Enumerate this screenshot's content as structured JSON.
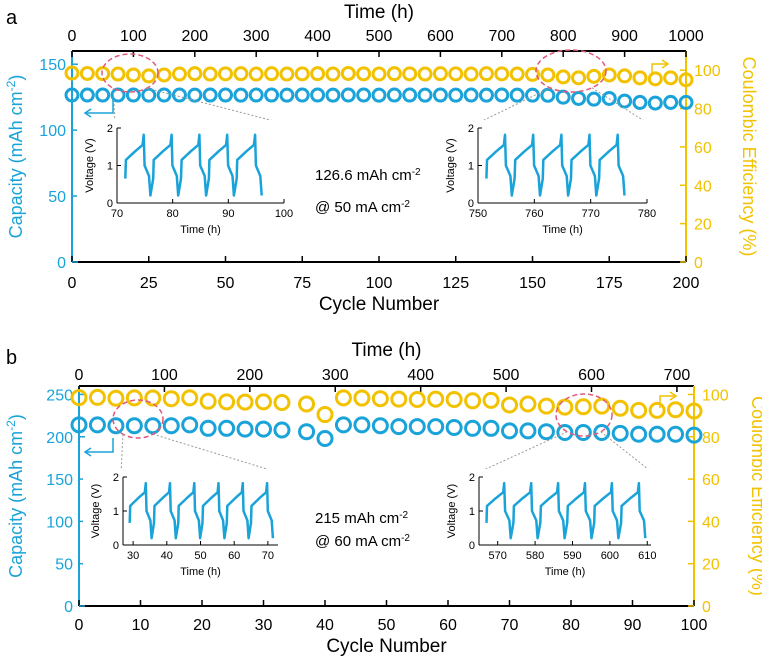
{
  "colors": {
    "capacity": "#1aa3d9",
    "efficiency": "#f2c200",
    "axis": "#000000",
    "highlight": "#e05a7a",
    "inset_line": "#1aa3d9"
  },
  "chart_data": [
    {
      "type": "scatter",
      "panel_label": "a",
      "xlabel": "Cycle Number",
      "xlim": [
        0,
        200
      ],
      "xticks": [
        0,
        25,
        50,
        75,
        100,
        125,
        150,
        175,
        200
      ],
      "top_xlabel": "Time (h)",
      "top_xlim": [
        0,
        1000
      ],
      "top_xticks": [
        0,
        100,
        200,
        300,
        400,
        500,
        600,
        700,
        800,
        900,
        1000
      ],
      "ylabel_left": "Capacity (mAh cm",
      "ylabel_left_suffix": ")",
      "ylabel_left_sup": "-2",
      "ylim_left": [
        0,
        160
      ],
      "yticks_left": [
        0,
        50,
        100,
        150
      ],
      "ylabel_right": "Coulombic Efficiency (%)",
      "ylim_right": [
        0,
        110
      ],
      "yticks_right": [
        0,
        20,
        40,
        60,
        80,
        100
      ],
      "annotation": {
        "line1": "126.6 mAh cm",
        "line1_sup": "-2",
        "line2": "@ 50 mA cm",
        "line2_sup": "-2"
      },
      "series": [
        {
          "name": "Capacity",
          "axis": "left",
          "x": [
            0,
            5,
            10,
            15,
            20,
            25,
            30,
            35,
            40,
            45,
            50,
            55,
            60,
            65,
            70,
            75,
            80,
            85,
            90,
            95,
            100,
            105,
            110,
            115,
            120,
            125,
            130,
            135,
            140,
            145,
            150,
            155,
            160,
            165,
            170,
            175,
            180,
            185,
            190,
            195,
            200
          ],
          "values": [
            126.6,
            126.6,
            126.6,
            126.6,
            126.6,
            126.5,
            126.6,
            126.6,
            126.5,
            126.6,
            126.6,
            126.5,
            126.6,
            126.6,
            126.5,
            126.6,
            126.6,
            126.5,
            126.6,
            126.6,
            126.5,
            126.6,
            126.6,
            126.5,
            126.6,
            126.5,
            126.6,
            126.5,
            126.6,
            126.5,
            126.5,
            126.4,
            125,
            124,
            123.5,
            124,
            122,
            121,
            120.5,
            121,
            121
          ]
        },
        {
          "name": "Coulombic Efficiency",
          "axis": "right",
          "x": [
            0,
            5,
            10,
            15,
            20,
            25,
            30,
            35,
            40,
            45,
            50,
            55,
            60,
            65,
            70,
            75,
            80,
            85,
            90,
            95,
            100,
            105,
            110,
            115,
            120,
            125,
            130,
            135,
            140,
            145,
            150,
            155,
            160,
            165,
            170,
            175,
            180,
            185,
            190,
            195,
            200
          ],
          "values": [
            98.5,
            98.3,
            98.2,
            98,
            97.5,
            97,
            97.5,
            98,
            98.2,
            98,
            98.1,
            98.2,
            98,
            98.2,
            98,
            98.1,
            98.2,
            98,
            98.3,
            98.1,
            98,
            98.2,
            98.1,
            98,
            98.2,
            98.1,
            98,
            98.2,
            98.1,
            98,
            97.8,
            97.5,
            96.5,
            96,
            96.8,
            97.5,
            97,
            96,
            95.5,
            96,
            95
          ]
        }
      ],
      "insets": [
        {
          "ylabel": "Voltage (V)",
          "xlabel": "Time (h)",
          "xlim": [
            70,
            100
          ],
          "xticks": [
            70,
            80,
            90,
            100
          ],
          "ylim": [
            0,
            2
          ],
          "yticks": [
            0,
            1,
            2
          ],
          "x_cycle_start": 71.5,
          "x_cycle_period": 5
        },
        {
          "ylabel": "Voltage (V)",
          "xlabel": "Time (h)",
          "xlim": [
            750,
            780
          ],
          "xticks": [
            750,
            760,
            770,
            780
          ],
          "ylim": [
            0,
            2
          ],
          "yticks": [
            0,
            1,
            2
          ],
          "x_cycle_start": 751.5,
          "x_cycle_period": 5
        }
      ]
    },
    {
      "type": "scatter",
      "panel_label": "b",
      "xlabel": "Cycle Number",
      "xlim": [
        0,
        100
      ],
      "xticks": [
        0,
        10,
        20,
        30,
        40,
        50,
        60,
        70,
        80,
        90,
        100
      ],
      "top_xlabel": "Time (h)",
      "top_xlim": [
        0,
        720
      ],
      "top_xticks": [
        0,
        100,
        200,
        300,
        400,
        500,
        600,
        700
      ],
      "ylabel_left": "Capacity (mAh cm",
      "ylabel_left_suffix": ")",
      "ylabel_left_sup": "-2",
      "ylim_left": [
        0,
        260
      ],
      "yticks_left": [
        0,
        50,
        100,
        150,
        200,
        250
      ],
      "ylabel_right": "Coulombic Efficiency (%)",
      "ylim_right": [
        0,
        104
      ],
      "yticks_right": [
        0,
        20,
        40,
        60,
        80,
        100
      ],
      "annotation": {
        "line1": "215 mAh cm",
        "line1_sup": "-2",
        "line2": "@ 60 mA cm",
        "line2_sup": "-2"
      },
      "series": [
        {
          "name": "Capacity",
          "axis": "left",
          "x": [
            0,
            3,
            6,
            9,
            12,
            15,
            18,
            21,
            24,
            27,
            30,
            33,
            37,
            40,
            43,
            46,
            49,
            52,
            55,
            58,
            61,
            64,
            67,
            70,
            73,
            76,
            79,
            82,
            85,
            88,
            91,
            94,
            97,
            100
          ],
          "values": [
            214,
            214,
            213,
            213,
            213,
            213,
            214,
            210,
            210,
            209,
            209,
            208,
            206,
            198,
            214,
            214,
            213,
            212,
            212,
            212,
            211,
            210,
            210,
            207,
            207,
            206,
            205,
            205,
            205,
            204,
            203,
            203,
            203,
            202
          ]
        },
        {
          "name": "Coulombic Efficiency",
          "axis": "right",
          "x": [
            0,
            3,
            6,
            9,
            12,
            15,
            18,
            21,
            24,
            27,
            30,
            33,
            37,
            40,
            43,
            46,
            49,
            52,
            55,
            58,
            61,
            64,
            67,
            70,
            73,
            76,
            79,
            82,
            85,
            88,
            91,
            94,
            97,
            100
          ],
          "values": [
            98.5,
            98.6,
            98.2,
            98.4,
            98.3,
            98,
            98.4,
            96.8,
            96.5,
            96.4,
            96.5,
            96.2,
            95.5,
            90.5,
            98.4,
            98.3,
            98,
            97.8,
            97.6,
            97.8,
            97.6,
            97,
            97.2,
            95,
            95.5,
            94.5,
            94,
            94.2,
            94.5,
            93.5,
            92.5,
            92.5,
            92.8,
            92.2
          ]
        }
      ],
      "insets": [
        {
          "ylabel": "Voltage (V)",
          "xlabel": "Time (h)",
          "xlim": [
            27,
            73
          ],
          "xticks": [
            30,
            40,
            50,
            60,
            70
          ],
          "ylim": [
            0,
            2
          ],
          "yticks": [
            0,
            1,
            2
          ],
          "x_cycle_start": 29,
          "x_cycle_period": 7.2
        },
        {
          "ylabel": "Voltage (V)",
          "xlabel": "Time (h)",
          "xlim": [
            565,
            611
          ],
          "xticks": [
            570,
            580,
            590,
            600,
            610
          ],
          "ylim": [
            0,
            2
          ],
          "yticks": [
            0,
            1,
            2
          ],
          "x_cycle_start": 567,
          "x_cycle_period": 7.2
        }
      ]
    }
  ]
}
